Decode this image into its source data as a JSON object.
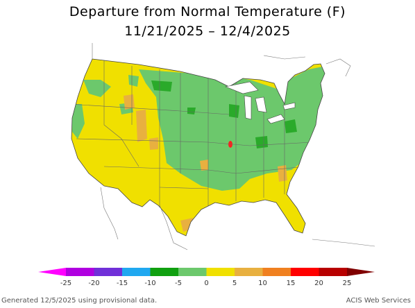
{
  "title_line1": "Departure from Normal Temperature (F)",
  "title_line2": "11/21/2025 – 12/4/2025",
  "footer_left": "Generated 12/5/2025 using provisional data.",
  "footer_right": "ACIS Web Services",
  "colors": {
    "base": "#f0e000",
    "green_light": "#6cc86c",
    "green_dark": "#2aaa2a",
    "orange": "#e8b040",
    "red": "#ff2020",
    "borders": "#666666"
  },
  "legend": {
    "ticks": [
      "-25",
      "-20",
      "-15",
      "-10",
      "-5",
      "0",
      "5",
      "10",
      "15",
      "20",
      "25"
    ],
    "colors": [
      "#ff00ff",
      "#b000e0",
      "#7030d8",
      "#20a8f0",
      "#10a010",
      "#6cc86c",
      "#f0e000",
      "#e8b040",
      "#f08020",
      "#ff0000",
      "#b80000",
      "#800000"
    ]
  }
}
